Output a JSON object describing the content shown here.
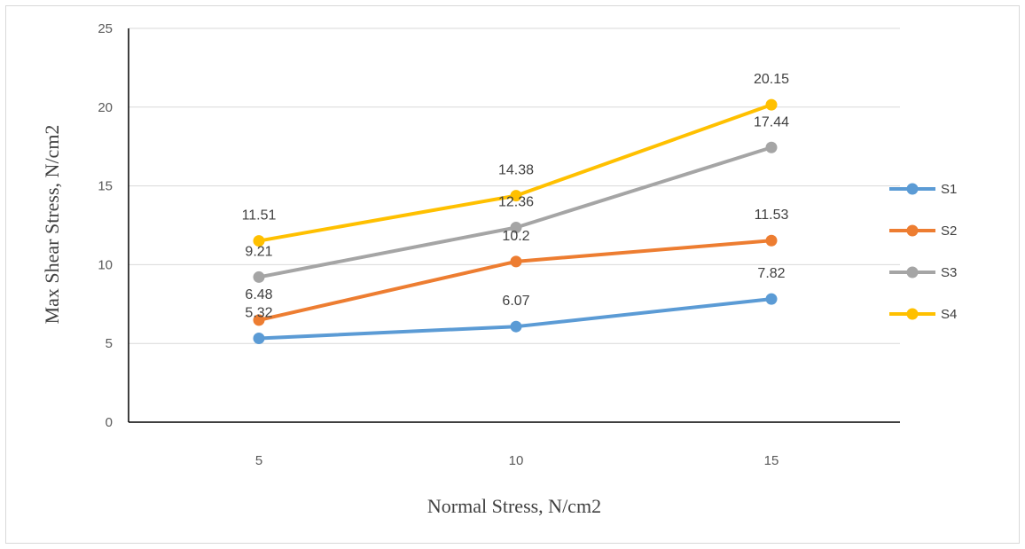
{
  "chart_data": {
    "type": "line",
    "title": "",
    "xlabel": "Normal Stress, N/cm2",
    "ylabel": "Max Shear Stress, N/cm2",
    "categories": [
      "5",
      "10",
      "15"
    ],
    "x": [
      5,
      10,
      15
    ],
    "ylim": [
      0,
      25
    ],
    "yticks": [
      "0",
      "5",
      "10",
      "15",
      "20",
      "25"
    ],
    "grid": true,
    "legend": "right",
    "series": [
      {
        "name": "S1",
        "color": "#5b9bd5",
        "values": [
          5.32,
          6.07,
          7.82
        ],
        "labels": [
          "5.32",
          "6.07",
          "7.82"
        ]
      },
      {
        "name": "S2",
        "color": "#ed7d31",
        "values": [
          6.48,
          10.2,
          11.53
        ],
        "labels": [
          "6.48",
          "10.2",
          "11.53"
        ]
      },
      {
        "name": "S3",
        "color": "#a5a5a5",
        "values": [
          9.21,
          12.36,
          17.44
        ],
        "labels": [
          "9.21",
          "12.36",
          "17.44"
        ]
      },
      {
        "name": "S4",
        "color": "#ffc000",
        "values": [
          11.51,
          14.38,
          20.15
        ],
        "labels": [
          "11.51",
          "14.38",
          "20.15"
        ]
      }
    ]
  }
}
